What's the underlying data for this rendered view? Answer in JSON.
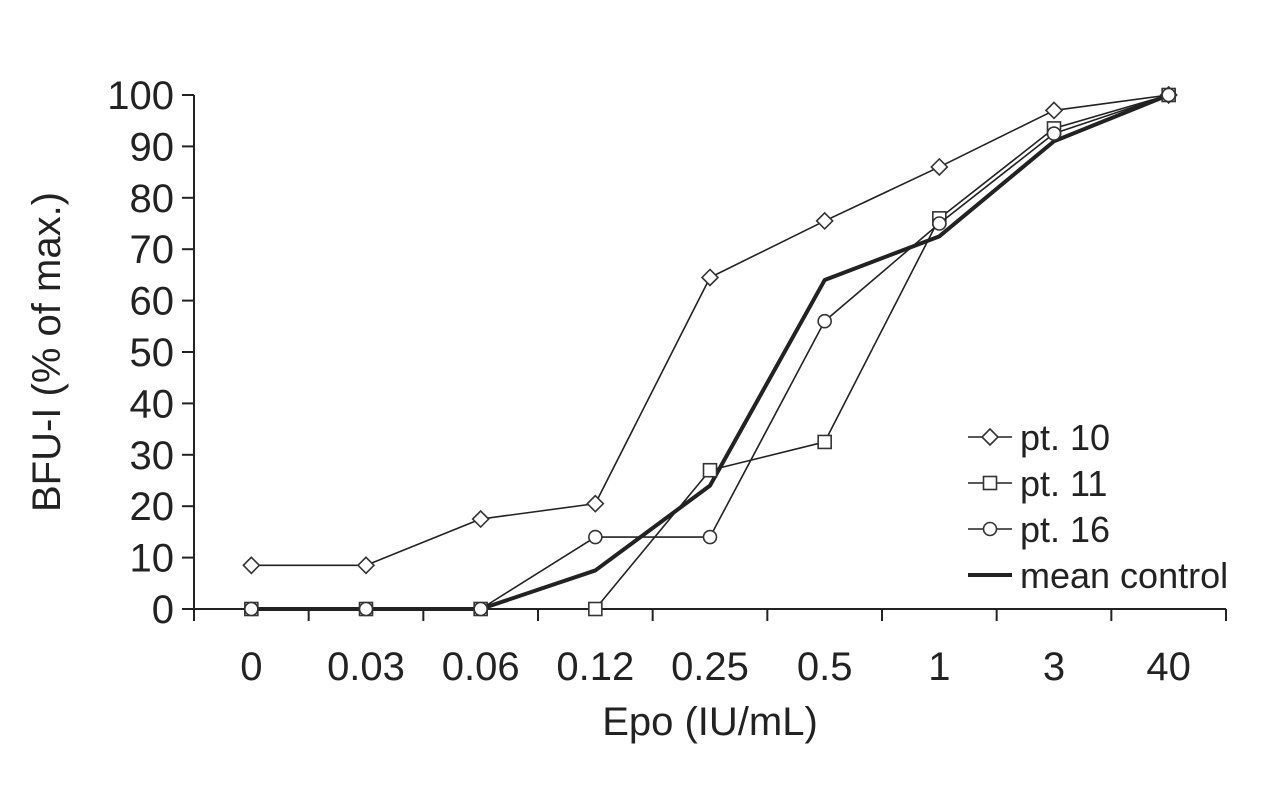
{
  "chart_data": {
    "type": "line",
    "xlabel": "Epo (IU/mL)",
    "ylabel": "BFU-I (% of max.)",
    "categories": [
      "0",
      "0.03",
      "0.06",
      "0.12",
      "0.25",
      "0.5",
      "1",
      "3",
      "40"
    ],
    "ylim": [
      0,
      100
    ],
    "yticks": [
      0,
      10,
      20,
      30,
      40,
      50,
      60,
      70,
      80,
      90,
      100
    ],
    "grid": false,
    "legend_position": "bottom-right",
    "series": [
      {
        "name": "pt. 10",
        "marker": "diamond",
        "values": [
          8.5,
          8.5,
          17.5,
          20.5,
          64.5,
          75.5,
          86,
          97,
          100
        ]
      },
      {
        "name": "pt. 11",
        "marker": "square",
        "values": [
          0,
          0,
          0,
          0,
          27,
          32.5,
          76,
          93.5,
          100
        ]
      },
      {
        "name": "pt. 16",
        "marker": "circle",
        "values": [
          0,
          0,
          0,
          14,
          14,
          56,
          75,
          92.5,
          100
        ]
      },
      {
        "name": "mean control",
        "marker": "none",
        "values": [
          0,
          0,
          0,
          7.5,
          24,
          64,
          72.5,
          91,
          100
        ]
      }
    ]
  }
}
